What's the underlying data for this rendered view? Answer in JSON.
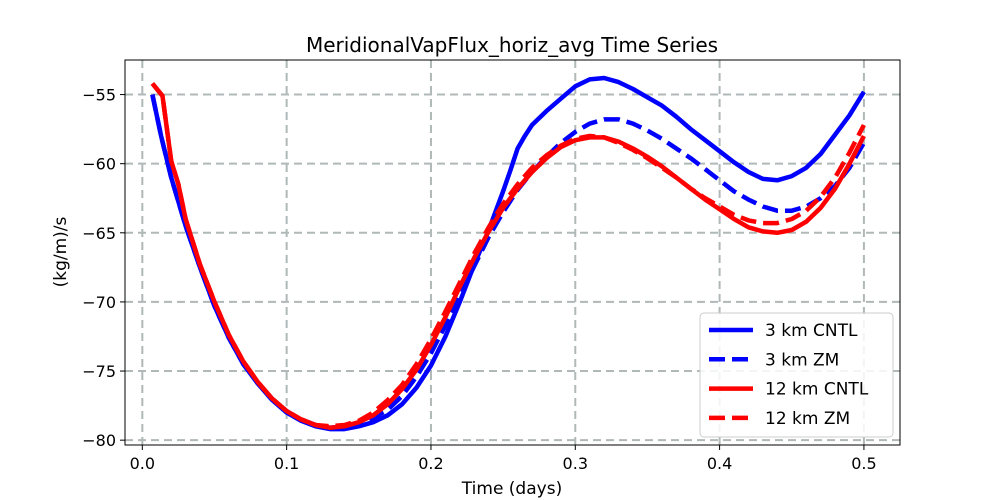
{
  "chart_data": {
    "type": "line",
    "title": "MeridionalVapFlux_horiz_avg Time Series",
    "xlabel": "Time (days)",
    "ylabel": "(kg/m)/s",
    "xlim": [
      -0.012,
      0.525
    ],
    "ylim": [
      -80.35,
      -52.5
    ],
    "xticks": [
      0.0,
      0.1,
      0.2,
      0.3,
      0.4,
      0.5
    ],
    "xtick_labels": [
      "0.0",
      "0.1",
      "0.2",
      "0.3",
      "0.4",
      "0.5"
    ],
    "yticks": [
      -55,
      -60,
      -65,
      -70,
      -75,
      -80
    ],
    "ytick_labels": [
      "−55",
      "−60",
      "−65",
      "−70",
      "−75",
      "−80"
    ],
    "grid": true,
    "legend_position": "lower right",
    "series": [
      {
        "name": "3 km CNTL",
        "color": "#0000ff",
        "linestyle": "solid",
        "x": [
          0.007,
          0.013,
          0.02,
          0.03,
          0.04,
          0.05,
          0.06,
          0.07,
          0.08,
          0.09,
          0.1,
          0.11,
          0.12,
          0.13,
          0.14,
          0.15,
          0.16,
          0.17,
          0.18,
          0.19,
          0.2,
          0.21,
          0.22,
          0.23,
          0.24,
          0.25,
          0.255,
          0.26,
          0.265,
          0.27,
          0.28,
          0.29,
          0.3,
          0.31,
          0.32,
          0.33,
          0.34,
          0.35,
          0.36,
          0.37,
          0.38,
          0.39,
          0.4,
          0.41,
          0.42,
          0.43,
          0.44,
          0.45,
          0.46,
          0.47,
          0.48,
          0.49,
          0.5
        ],
        "y": [
          -55.0,
          -58.0,
          -61.0,
          -64.5,
          -67.5,
          -70.3,
          -72.6,
          -74.5,
          -75.9,
          -77.1,
          -78.0,
          -78.6,
          -79.0,
          -79.2,
          -79.2,
          -79.0,
          -78.7,
          -78.2,
          -77.4,
          -76.2,
          -74.6,
          -72.5,
          -70.0,
          -67.3,
          -64.8,
          -62.0,
          -60.5,
          -58.9,
          -58.0,
          -57.2,
          -56.2,
          -55.3,
          -54.4,
          -53.9,
          -53.8,
          -54.1,
          -54.6,
          -55.2,
          -55.8,
          -56.6,
          -57.5,
          -58.3,
          -59.1,
          -59.9,
          -60.6,
          -61.1,
          -61.2,
          -60.9,
          -60.3,
          -59.3,
          -57.9,
          -56.5,
          -54.8
        ]
      },
      {
        "name": "3 km ZM",
        "color": "#0000ff",
        "linestyle": "dashed",
        "x": [
          0.007,
          0.013,
          0.02,
          0.03,
          0.04,
          0.05,
          0.06,
          0.07,
          0.08,
          0.09,
          0.1,
          0.11,
          0.12,
          0.13,
          0.14,
          0.15,
          0.16,
          0.17,
          0.18,
          0.19,
          0.2,
          0.21,
          0.22,
          0.23,
          0.24,
          0.25,
          0.26,
          0.27,
          0.28,
          0.29,
          0.3,
          0.31,
          0.32,
          0.33,
          0.34,
          0.35,
          0.36,
          0.37,
          0.38,
          0.39,
          0.4,
          0.41,
          0.42,
          0.43,
          0.44,
          0.45,
          0.46,
          0.47,
          0.48,
          0.49,
          0.5
        ],
        "y": [
          -55.0,
          -58.0,
          -61.0,
          -64.5,
          -67.5,
          -70.3,
          -72.6,
          -74.5,
          -75.9,
          -77.0,
          -77.9,
          -78.5,
          -78.9,
          -79.1,
          -79.0,
          -78.8,
          -78.4,
          -77.8,
          -76.8,
          -75.4,
          -73.7,
          -71.7,
          -69.5,
          -67.4,
          -65.3,
          -63.5,
          -61.9,
          -60.6,
          -59.5,
          -58.5,
          -57.7,
          -57.1,
          -56.8,
          -56.8,
          -57.1,
          -57.6,
          -58.2,
          -58.9,
          -59.6,
          -60.4,
          -61.2,
          -62.0,
          -62.6,
          -63.1,
          -63.4,
          -63.4,
          -63.1,
          -62.5,
          -61.6,
          -60.3,
          -58.5
        ]
      },
      {
        "name": "12 km CNTL",
        "color": "#ff0000",
        "linestyle": "solid",
        "x": [
          0.007,
          0.014,
          0.02,
          0.025,
          0.03,
          0.04,
          0.05,
          0.06,
          0.07,
          0.08,
          0.09,
          0.1,
          0.11,
          0.12,
          0.13,
          0.14,
          0.15,
          0.16,
          0.17,
          0.18,
          0.19,
          0.2,
          0.21,
          0.22,
          0.23,
          0.24,
          0.25,
          0.26,
          0.27,
          0.28,
          0.29,
          0.3,
          0.31,
          0.32,
          0.33,
          0.34,
          0.35,
          0.36,
          0.37,
          0.38,
          0.39,
          0.4,
          0.41,
          0.42,
          0.43,
          0.44,
          0.45,
          0.46,
          0.47,
          0.48,
          0.49,
          0.5
        ],
        "y": [
          -54.2,
          -55.1,
          -59.8,
          -61.5,
          -64.0,
          -67.3,
          -70.0,
          -72.4,
          -74.3,
          -75.8,
          -77.0,
          -77.9,
          -78.5,
          -78.9,
          -79.1,
          -79.0,
          -78.7,
          -78.2,
          -77.4,
          -76.3,
          -74.9,
          -73.1,
          -71.1,
          -68.9,
          -66.8,
          -64.9,
          -63.2,
          -61.8,
          -60.6,
          -59.6,
          -58.8,
          -58.3,
          -58.1,
          -58.1,
          -58.4,
          -58.9,
          -59.5,
          -60.2,
          -61.0,
          -61.8,
          -62.6,
          -63.3,
          -64.0,
          -64.6,
          -64.9,
          -65.0,
          -64.8,
          -64.2,
          -63.2,
          -61.8,
          -60.0,
          -58.0
        ]
      },
      {
        "name": "12 km ZM",
        "color": "#ff0000",
        "linestyle": "dashed",
        "x": [
          0.007,
          0.014,
          0.02,
          0.025,
          0.03,
          0.04,
          0.05,
          0.06,
          0.07,
          0.08,
          0.09,
          0.1,
          0.11,
          0.12,
          0.13,
          0.14,
          0.15,
          0.16,
          0.17,
          0.18,
          0.19,
          0.2,
          0.21,
          0.22,
          0.23,
          0.24,
          0.25,
          0.26,
          0.27,
          0.28,
          0.29,
          0.3,
          0.31,
          0.32,
          0.33,
          0.34,
          0.35,
          0.36,
          0.37,
          0.38,
          0.39,
          0.4,
          0.41,
          0.42,
          0.43,
          0.44,
          0.45,
          0.46,
          0.47,
          0.48,
          0.49,
          0.5
        ],
        "y": [
          -54.2,
          -55.1,
          -59.8,
          -61.5,
          -64.0,
          -67.3,
          -70.0,
          -72.4,
          -74.3,
          -75.8,
          -77.0,
          -77.9,
          -78.5,
          -78.9,
          -79.0,
          -78.9,
          -78.6,
          -78.0,
          -77.1,
          -76.0,
          -74.5,
          -72.7,
          -70.7,
          -68.6,
          -66.5,
          -64.6,
          -62.9,
          -61.5,
          -60.3,
          -59.4,
          -58.7,
          -58.2,
          -58.0,
          -58.1,
          -58.5,
          -59.0,
          -59.6,
          -60.3,
          -61.0,
          -61.8,
          -62.5,
          -63.1,
          -63.7,
          -64.1,
          -64.3,
          -64.3,
          -64.0,
          -63.4,
          -62.4,
          -61.0,
          -59.2,
          -57.2
        ]
      }
    ]
  }
}
